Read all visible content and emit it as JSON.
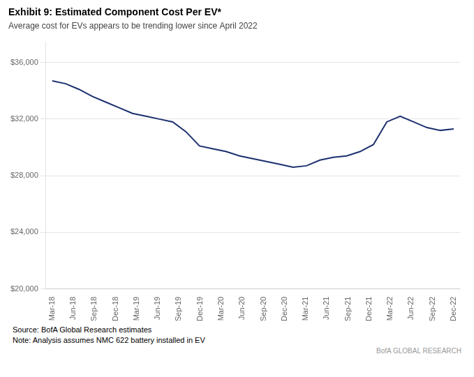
{
  "chart_data": {
    "type": "line",
    "title": "Exhibit 9: Estimated Component Cost Per EV*",
    "subtitle": "Average cost for EVs appears to be trending lower since April 2022",
    "annotations": [
      "Source: BofA Global Research estimates",
      "Note: Analysis assumes NMC 622 battery installed in EV",
      "BofA GLOBAL RESEARCH"
    ],
    "color": "#1b2f6e",
    "x": [
      0.0,
      0.6333333333333333,
      1.2666666666666666,
      1.9,
      2.533333333333333,
      3.1666666666666665,
      3.8,
      4.433333333333333,
      5.066666666666666,
      5.7,
      6.333333333333333,
      6.966666666666667,
      7.6,
      8.233333333333333,
      8.866666666666667,
      9.5,
      10.133333333333333,
      10.766666666666667,
      11.4,
      12.033333333333333,
      12.666666666666666,
      13.3,
      13.933333333333334,
      14.566666666666666,
      15.2,
      15.833333333333332,
      16.466666666666665,
      17.1,
      17.733333333333334,
      18.366666666666667,
      19.0
    ],
    "values": [
      34700,
      34500,
      34100,
      33600,
      33200,
      32800,
      32400,
      32200,
      32000,
      31800,
      31100,
      30100,
      29900,
      29700,
      29400,
      29200,
      29000,
      28800,
      28600,
      28700,
      29100,
      29300,
      29400,
      29700,
      30200,
      31800,
      32200,
      31800,
      31400,
      31200,
      31300
    ],
    "xlim": [
      -0.3,
      19.3
    ],
    "xticks": [
      {
        "value": 0,
        "label": "Mar-18"
      },
      {
        "value": 1,
        "label": "Jun-18"
      },
      {
        "value": 2,
        "label": "Sep-18"
      },
      {
        "value": 3,
        "label": "Dec-18"
      },
      {
        "value": 4,
        "label": "Mar-19"
      },
      {
        "value": 5,
        "label": "Jun-19"
      },
      {
        "value": 6,
        "label": "Sep-19"
      },
      {
        "value": 7,
        "label": "Dec-19"
      },
      {
        "value": 8,
        "label": "Mar-20"
      },
      {
        "value": 9,
        "label": "Jun-20"
      },
      {
        "value": 10,
        "label": "Sep-20"
      },
      {
        "value": 11,
        "label": "Dec-20"
      },
      {
        "value": 12,
        "label": "Mar-21"
      },
      {
        "value": 13,
        "label": "Jun-21"
      },
      {
        "value": 14,
        "label": "Sep-21"
      },
      {
        "value": 15,
        "label": "Dec-21"
      },
      {
        "value": 16,
        "label": "Mar-22"
      },
      {
        "value": 17,
        "label": "Jun-22"
      },
      {
        "value": 18,
        "label": "Sep-22"
      },
      {
        "value": 19,
        "label": "Dec-22"
      }
    ],
    "ylim": [
      20000,
      37500
    ],
    "yticks": [
      {
        "value": 20000,
        "label": "$20,000"
      },
      {
        "value": 24000,
        "label": "$24,000"
      },
      {
        "value": 28000,
        "label": "$28,000"
      },
      {
        "value": 32000,
        "label": "$32,000"
      },
      {
        "value": 36000,
        "label": "$36,000"
      }
    ],
    "grid": "y"
  }
}
